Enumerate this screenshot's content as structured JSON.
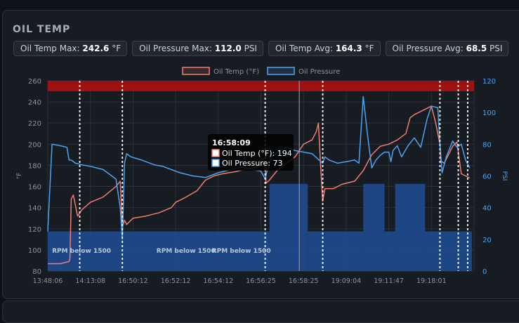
{
  "panel": {
    "title": "OIL TEMP"
  },
  "stats": [
    {
      "label": "Oil Temp Max:",
      "value": "242.6",
      "unit": "°F"
    },
    {
      "label": "Oil Pressure Max:",
      "value": "112.0",
      "unit": "PSI"
    },
    {
      "label": "Oil Temp Avg:",
      "value": "164.3",
      "unit": "°F"
    },
    {
      "label": "Oil Pressure Avg:",
      "value": "68.5",
      "unit": "PSI"
    }
  ],
  "tooltip": {
    "time": "16:58:09",
    "temp_line": "Oil Temp (°F): 194",
    "pressure_line": "Oil Pressure: 73"
  },
  "colors": {
    "temp": "#f07d6e",
    "pressure": "#4ea3f2",
    "rpm_fill": "#1f4b8f",
    "threshold_band": "#9c1111"
  },
  "chart_data": {
    "type": "line",
    "legend": [
      "Oil Temp (°F)",
      "Oil Pressure"
    ],
    "legend_position": "top",
    "x_ticks": [
      "13:48:06",
      "14:13:08",
      "16:50:12",
      "16:52:12",
      "16:54:12",
      "16:56:25",
      "16:58:25",
      "19:09:04",
      "19:11:47",
      "19:18:01"
    ],
    "y_left": {
      "label": "°F",
      "range": [
        80,
        260
      ],
      "ticks": [
        80,
        100,
        120,
        140,
        160,
        180,
        200,
        220,
        240,
        260
      ]
    },
    "y_right": {
      "label": "PSI",
      "range": [
        0,
        120
      ],
      "ticks": [
        0,
        20,
        40,
        60,
        80,
        100,
        120
      ]
    },
    "threshold_band": {
      "from_f": 250,
      "to_f": 260
    },
    "annotations": [
      {
        "label": "RPM below 1500",
        "x_index": 0.1
      },
      {
        "label": "RPM below 1500",
        "x_index": 2.55
      },
      {
        "label": "RPM below 1500",
        "x_index": 3.85
      }
    ],
    "marker_lines_x": [
      0.75,
      1.75,
      5.1,
      6.45,
      9.2,
      9.63,
      9.85
    ],
    "cursor_x": 5.9,
    "rpm_low_regions": [
      {
        "x_start": 0.0,
        "x_end": 5.2,
        "psi": 25
      },
      {
        "x_start": 5.2,
        "x_end": 6.1,
        "psi": 55
      },
      {
        "x_start": 6.1,
        "x_end": 7.4,
        "psi": 25
      },
      {
        "x_start": 7.4,
        "x_end": 7.9,
        "psi": 55
      },
      {
        "x_start": 7.9,
        "x_end": 8.15,
        "psi": 25
      },
      {
        "x_start": 8.15,
        "x_end": 8.85,
        "psi": 55
      },
      {
        "x_start": 8.85,
        "x_end": 9.95,
        "psi": 25
      }
    ],
    "series": [
      {
        "name": "Oil Temp (°F)",
        "axis": "left",
        "x": [
          0,
          0.3,
          0.5,
          0.52,
          0.55,
          0.6,
          0.7,
          0.8,
          1.0,
          1.3,
          1.6,
          1.7,
          1.75,
          1.8,
          1.85,
          2.0,
          2.3,
          2.6,
          2.9,
          3.0,
          3.2,
          3.5,
          3.7,
          3.9,
          4.1,
          4.4,
          4.6,
          4.9,
          5.0,
          5.1,
          5.12,
          5.2,
          5.4,
          5.6,
          5.8,
          5.9,
          6.0,
          6.2,
          6.3,
          6.35,
          6.4,
          6.45,
          6.5,
          6.7,
          6.9,
          7.2,
          7.4,
          7.6,
          7.8,
          8.0,
          8.2,
          8.4,
          8.5,
          8.6,
          8.8,
          9.0,
          9.1,
          9.2,
          9.22,
          9.3,
          9.5,
          9.6,
          9.7,
          9.9
        ],
        "y": [
          87,
          87,
          89,
          92,
          148,
          152,
          132,
          138,
          145,
          150,
          160,
          165,
          122,
          128,
          124,
          130,
          132,
          135,
          140,
          145,
          149,
          156,
          166,
          170,
          172,
          174,
          176,
          178,
          180,
          183,
          163,
          166,
          176,
          182,
          188,
          194,
          200,
          204,
          212,
          220,
          180,
          146,
          158,
          158,
          162,
          165,
          175,
          190,
          198,
          200,
          204,
          210,
          225,
          228,
          232,
          236,
          220,
          200,
          184,
          182,
          198,
          202,
          172,
          168
        ]
      },
      {
        "name": "Oil Pressure",
        "axis": "right",
        "x": [
          0,
          0.1,
          0.3,
          0.45,
          0.5,
          0.55,
          0.65,
          0.8,
          1.0,
          1.3,
          1.6,
          1.7,
          1.75,
          1.8,
          1.85,
          1.95,
          2.2,
          2.5,
          2.7,
          2.9,
          3.1,
          3.4,
          3.7,
          4.0,
          4.3,
          4.6,
          4.8,
          5.0,
          5.1,
          5.15,
          5.25,
          5.45,
          5.6,
          5.8,
          6.0,
          6.2,
          6.45,
          6.5,
          6.6,
          6.8,
          7.0,
          7.2,
          7.3,
          7.4,
          7.5,
          7.6,
          7.7,
          7.8,
          7.9,
          8.0,
          8.05,
          8.1,
          8.2,
          8.3,
          8.45,
          8.6,
          8.75,
          8.9,
          9.0,
          9.15,
          9.2,
          9.25,
          9.35,
          9.5,
          9.6,
          9.7,
          9.8,
          9.9
        ],
        "y": [
          25,
          80,
          79,
          78,
          70,
          70,
          68,
          67,
          66,
          64,
          58,
          40,
          20,
          68,
          74,
          72,
          70,
          67,
          66,
          64,
          62,
          60,
          59,
          62,
          64,
          66,
          64,
          63,
          58,
          64,
          72,
          76,
          78,
          76,
          75,
          74,
          68,
          72,
          70,
          68,
          69,
          70,
          68,
          110,
          86,
          65,
          70,
          73,
          75,
          75,
          69,
          76,
          79,
          72,
          79,
          84,
          78,
          96,
          104,
          103,
          80,
          62,
          72,
          82,
          78,
          80,
          70,
          65
        ]
      }
    ]
  }
}
